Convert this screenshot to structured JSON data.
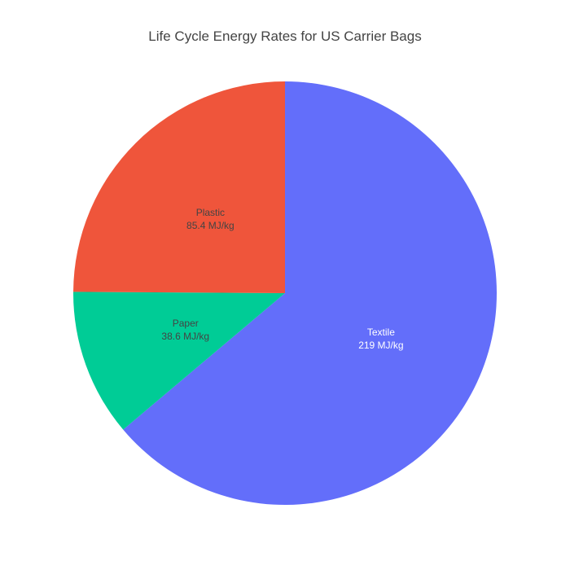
{
  "chart_data": {
    "type": "pie",
    "title": "Life Cycle Energy Rates for US Carrier Bags",
    "unit": "MJ/kg",
    "direction": "clockwise",
    "start": "top",
    "slices": [
      {
        "label": "Textile",
        "value": 219,
        "value_text": "219 MJ/kg",
        "color": "#636efa",
        "text_color": "#ffffff"
      },
      {
        "label": "Paper",
        "value": 38.6,
        "value_text": "38.6 MJ/kg",
        "color": "#00cc96",
        "text_color": "#444444"
      },
      {
        "label": "Plastic",
        "value": 85.4,
        "value_text": "85.4 MJ/kg",
        "color": "#ef553b",
        "text_color": "#444444"
      }
    ]
  }
}
